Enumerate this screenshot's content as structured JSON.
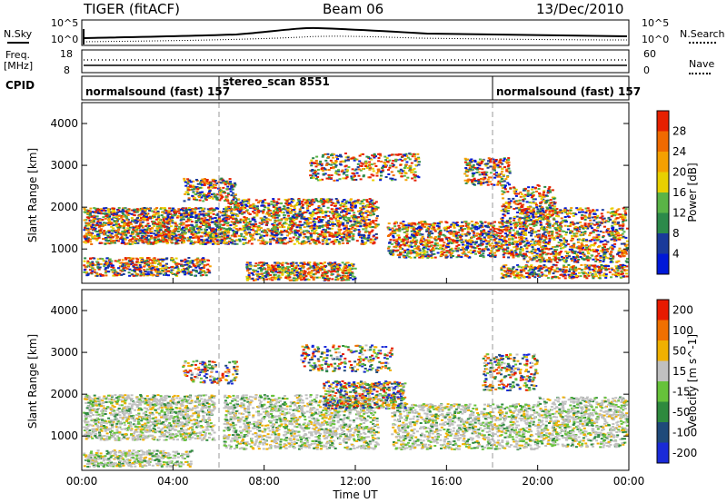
{
  "header": {
    "radar": "TIGER (fitACF)",
    "beam": "Beam 06",
    "date": "13/Dec/2010"
  },
  "noise_panel": {
    "left_label": "N.Sky",
    "left_ticks": [
      "10^5",
      "10^0"
    ],
    "right_label": "N.Search",
    "right_ticks": [
      "10^5",
      "10^0"
    ]
  },
  "freq_panel": {
    "left_label_line1": "Freq.",
    "left_label_line2": "[MHz]",
    "left_ticks": [
      "18",
      "8"
    ],
    "right_label": "Nave",
    "right_ticks": [
      "60",
      "0"
    ]
  },
  "cpid_panel": {
    "label": "CPID",
    "segments": [
      {
        "label": "normalsound (fast) 157",
        "start": "00:00",
        "end": "06:00"
      },
      {
        "label": "stereo_scan 8551",
        "start": "06:00",
        "end": "18:00"
      },
      {
        "label": "normalsound (fast) 157",
        "start": "18:00",
        "end": "24:00"
      }
    ]
  },
  "xaxis": {
    "label": "Time UT",
    "ticks": [
      "00:00",
      "04:00",
      "08:00",
      "12:00",
      "16:00",
      "20:00",
      "00:00"
    ]
  },
  "power_panel": {
    "ylabel": "Slant Range [km]",
    "yticks": [
      "4000",
      "3000",
      "2000",
      "1000"
    ],
    "colorbar_label": "Power [dB]",
    "colorbar_ticks": [
      "28",
      "24",
      "20",
      "16",
      "12",
      "8",
      "4"
    ],
    "colors": [
      "#0018d8",
      "#1a3a9a",
      "#2c8a4a",
      "#5ab446",
      "#e8d000",
      "#f5a000",
      "#f06a00",
      "#e62000"
    ]
  },
  "velocity_panel": {
    "ylabel": "Slant Range [km]",
    "yticks": [
      "4000",
      "3000",
      "2000",
      "1000"
    ],
    "colorbar_label": "Velocity [m s^-1]",
    "colorbar_ticks": [
      "200",
      "100",
      "50",
      "15",
      "-15",
      "-50",
      "-100",
      "-200"
    ],
    "colors": [
      "#1a2ad8",
      "#1f4a7a",
      "#2e8a3e",
      "#66c23a",
      "#c0c0c0",
      "#f0b000",
      "#f07000",
      "#e81a00"
    ]
  },
  "chart_data": {
    "type": "heatmap",
    "title": "TIGER (fitACF) Beam 06 13/Dec/2010",
    "xlabel": "Time UT",
    "ylabel": "Slant Range [km]",
    "x_range": [
      "00:00",
      "24:00"
    ],
    "y_range_km": [
      180,
      4500
    ],
    "power_range_db": [
      0,
      32
    ],
    "velocity_range_ms": [
      -250,
      250
    ],
    "mode_changes_ut": [
      "06:00",
      "18:00"
    ],
    "series": [
      {
        "name": "Power [dB]",
        "description_bands_km": [
          [
            1200,
            1800
          ],
          [
            300,
            1000
          ],
          [
            2400,
            3200
          ]
        ]
      },
      {
        "name": "Velocity [m s^-1]",
        "description_bands_km": [
          [
            300,
            1800
          ],
          [
            1800,
            2900
          ]
        ]
      }
    ]
  }
}
